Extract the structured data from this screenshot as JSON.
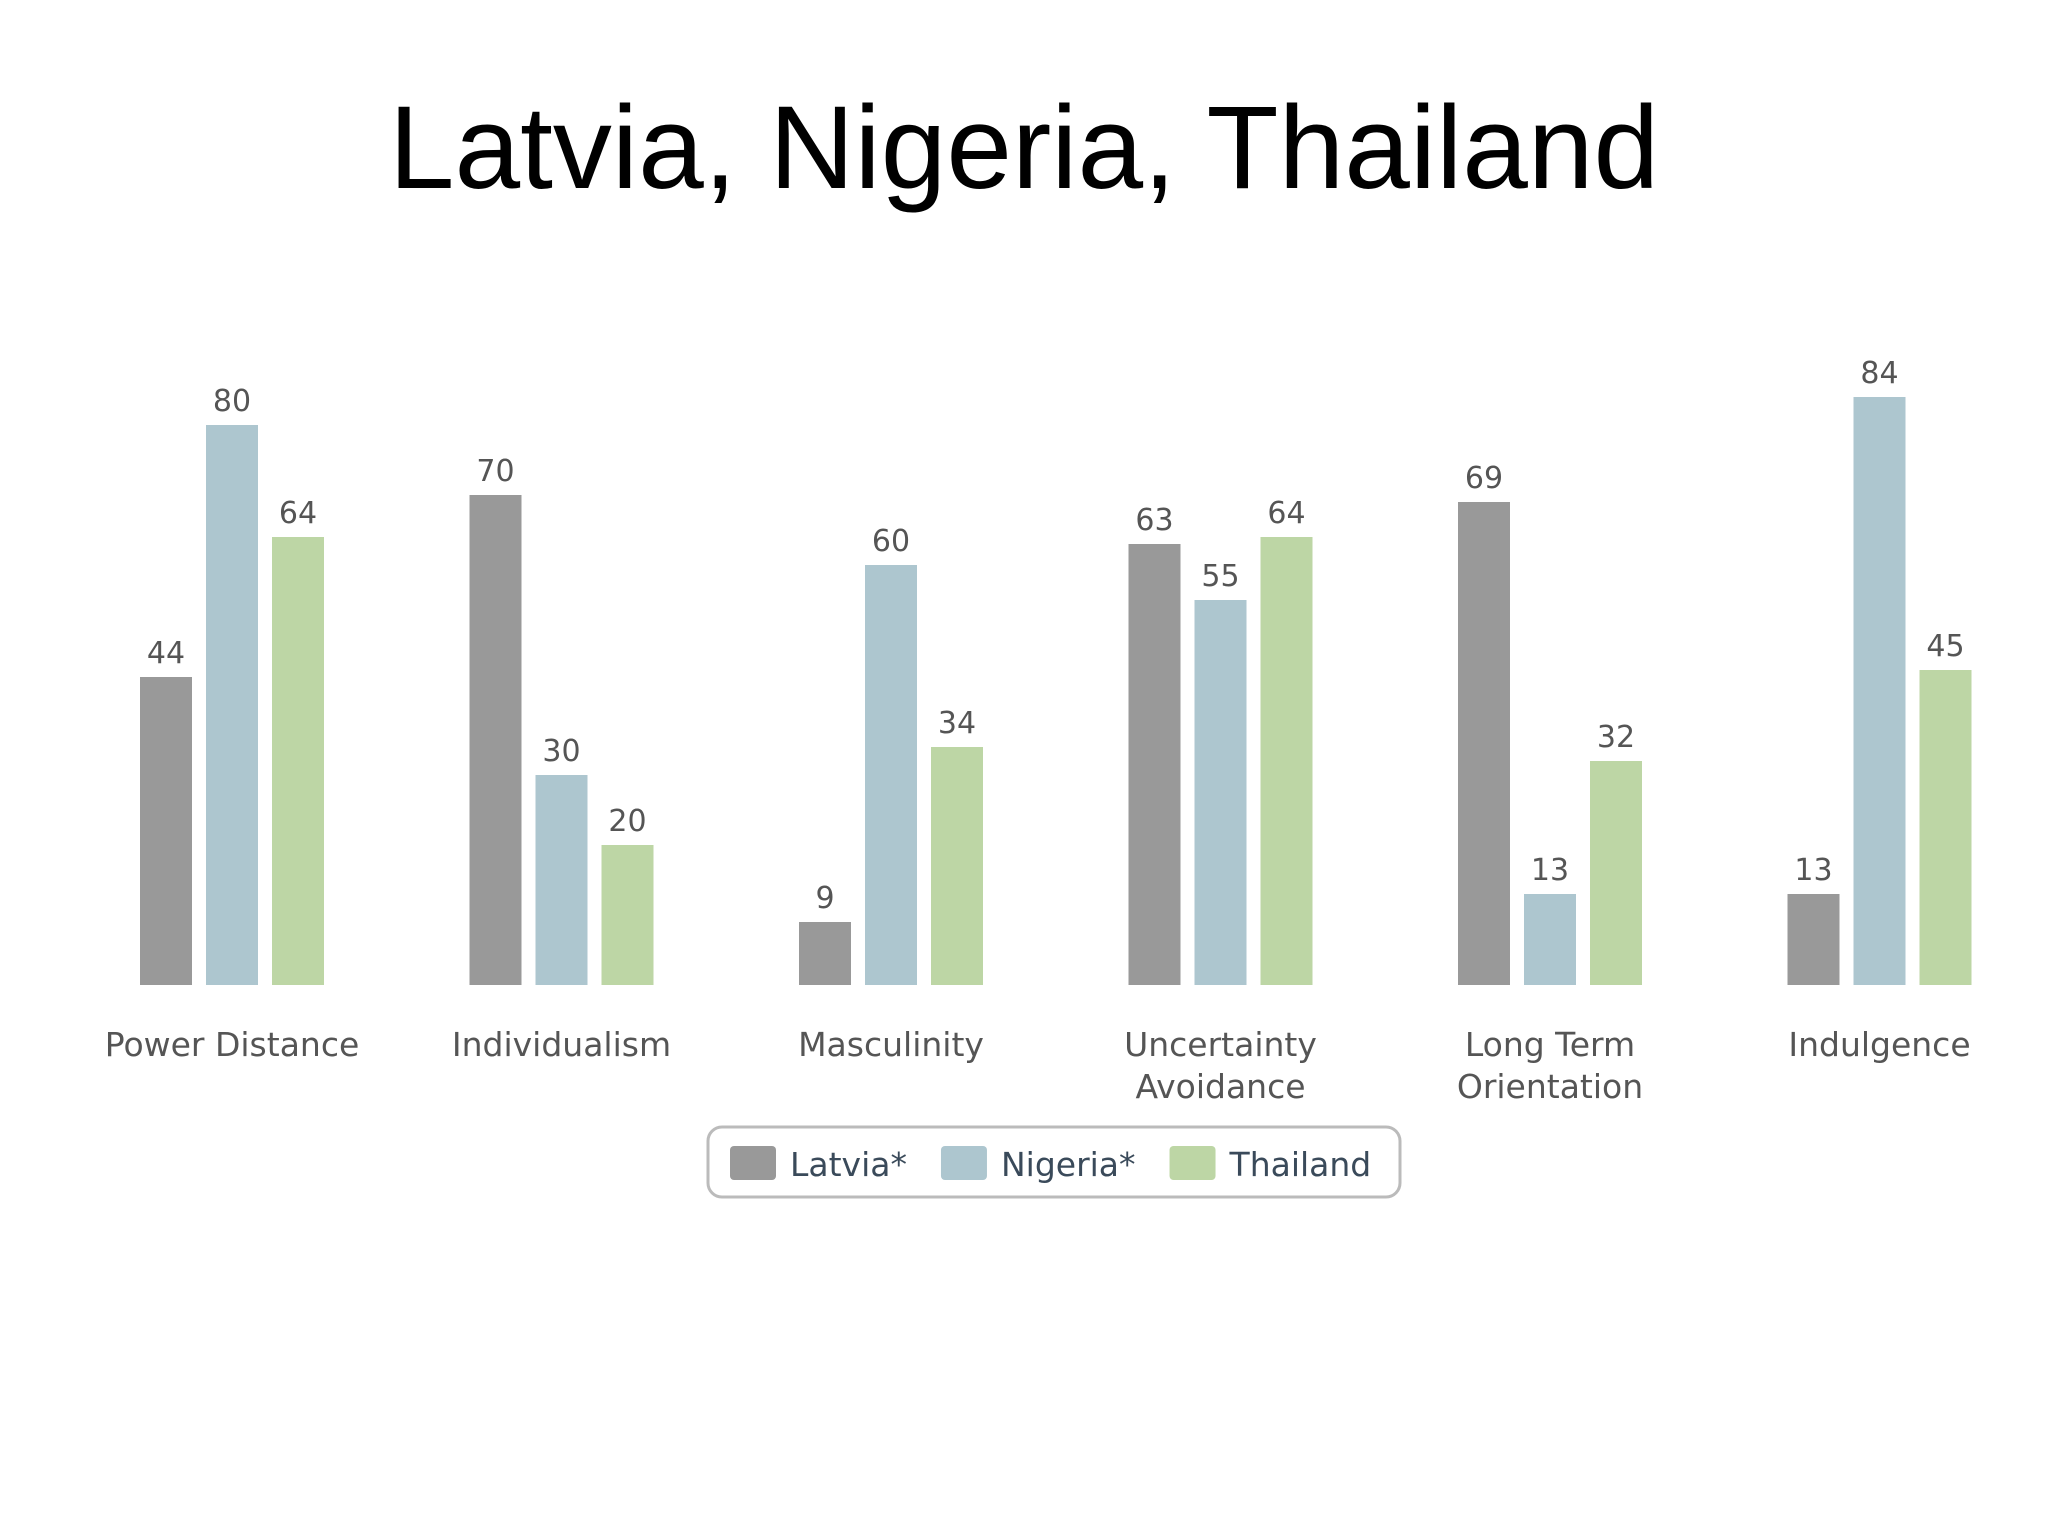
{
  "title": "Latvia, Nigeria, Thailand",
  "chart_data": {
    "type": "bar",
    "title": "Latvia, Nigeria, Thailand",
    "xlabel": "",
    "ylabel": "",
    "ylim": [
      0,
      100
    ],
    "grid": false,
    "legend_position": "bottom",
    "categories": [
      [
        "Power Distance"
      ],
      [
        "Individualism"
      ],
      [
        "Masculinity"
      ],
      [
        "Uncertainty",
        "Avoidance"
      ],
      [
        "Long Term",
        "Orientation"
      ],
      [
        "Indulgence"
      ]
    ],
    "series": [
      {
        "name": "Latvia*",
        "color": "#999999",
        "values": [
          44,
          70,
          9,
          63,
          69,
          13
        ]
      },
      {
        "name": "Nigeria*",
        "color": "#adc6cf",
        "values": [
          80,
          30,
          60,
          55,
          13,
          84
        ]
      },
      {
        "name": "Thailand",
        "color": "#bdd6a5",
        "values": [
          64,
          20,
          34,
          64,
          32,
          45
        ]
      }
    ]
  }
}
